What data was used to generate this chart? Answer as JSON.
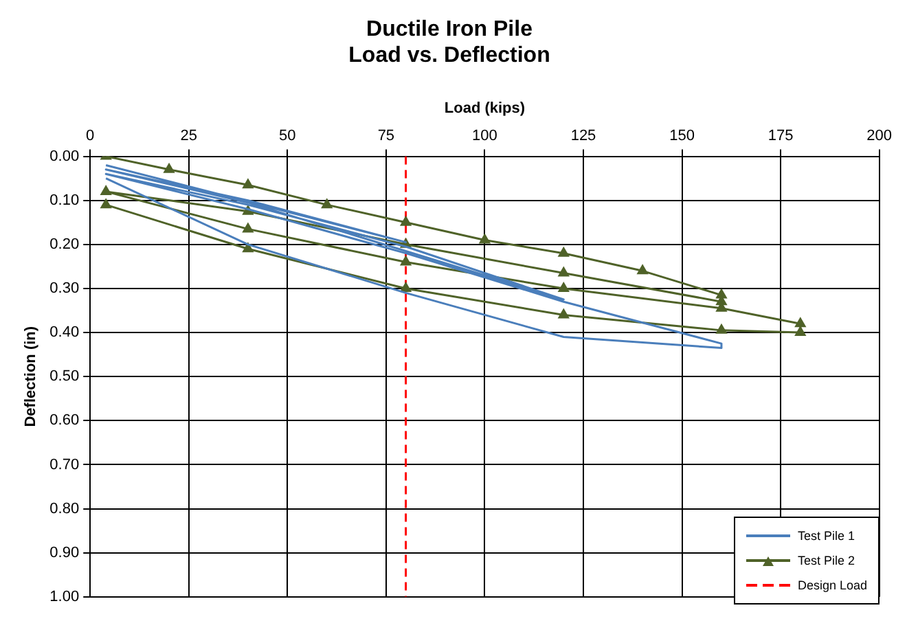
{
  "chart_data": {
    "type": "line",
    "title": "Ductile Iron Pile\nLoad vs. Deflection",
    "xlabel": "Load (kips)",
    "ylabel": "Deflection (in)",
    "xlim": [
      0,
      200
    ],
    "xticks": [
      0,
      25,
      50,
      75,
      100,
      125,
      150,
      175,
      200
    ],
    "ylim": [
      1,
      0
    ],
    "yticks": [
      {
        "value": 0,
        "label": "0.00"
      },
      {
        "value": 0.1,
        "label": "0.10"
      },
      {
        "value": 0.2,
        "label": "0.20"
      },
      {
        "value": 0.3,
        "label": "0.30"
      },
      {
        "value": 0.4,
        "label": "0.40"
      },
      {
        "value": 0.5,
        "label": "0.50"
      },
      {
        "value": 0.6,
        "label": "0.60"
      },
      {
        "value": 0.7,
        "label": "0.70"
      },
      {
        "value": 0.8,
        "label": "0.80"
      },
      {
        "value": 0.9,
        "label": "0.90"
      },
      {
        "value": 1,
        "label": "1.00"
      }
    ],
    "grid": true,
    "legend": "bottom right",
    "line_style": "solid",
    "series": [
      {
        "name": "Test Pile 1",
        "color": "#4a7ebb",
        "marker": "none",
        "x": [
          4,
          40,
          80,
          120,
          160,
          160,
          120,
          80,
          40,
          4,
          40,
          80,
          120,
          40,
          4,
          40,
          80,
          4
        ],
        "values": [
          0.05,
          0.2,
          0.31,
          0.41,
          0.435,
          0.425,
          0.33,
          0.22,
          0.12,
          0.04,
          0.11,
          0.205,
          0.325,
          0.105,
          0.03,
          0.1,
          0.195,
          0.02
        ]
      },
      {
        "name": "Test Pile 2",
        "color": "#4f6228",
        "marker": "triangle",
        "x": [
          4,
          20,
          40,
          60,
          80,
          100,
          120,
          140,
          160,
          160,
          120,
          80,
          40,
          4,
          40,
          80,
          120,
          160,
          180,
          180,
          160,
          120,
          80,
          40,
          4
        ],
        "values": [
          0,
          0.03,
          0.065,
          0.11,
          0.15,
          0.19,
          0.22,
          0.26,
          0.315,
          0.33,
          0.265,
          0.2,
          0.125,
          0.08,
          0.165,
          0.24,
          0.3,
          0.345,
          0.38,
          0.4,
          0.395,
          0.36,
          0.3,
          0.21,
          0.11
        ]
      },
      {
        "name": "Design Load",
        "type": "line",
        "color": "#ff0000",
        "marker": "none",
        "line_style": "dashed",
        "x": [
          80,
          80
        ],
        "values": [
          0,
          1
        ]
      }
    ]
  }
}
